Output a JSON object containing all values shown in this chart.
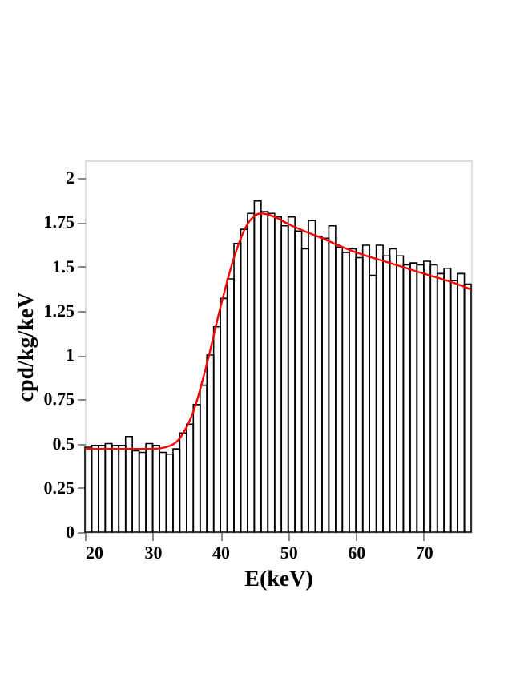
{
  "chart_data": {
    "type": "histogram",
    "xlabel": "E(keV)",
    "ylabel": "cpd/kg/keV",
    "bins": [
      20,
      21,
      22,
      23,
      24,
      25,
      26,
      27,
      28,
      29,
      30,
      31,
      32,
      33,
      34,
      35,
      36,
      37,
      38,
      39,
      40,
      41,
      42,
      43,
      44,
      45,
      46,
      47,
      48,
      49,
      50,
      51,
      52,
      53,
      54,
      55,
      56,
      57,
      58,
      59,
      60,
      61,
      62,
      63,
      64,
      65,
      66,
      67,
      68,
      69,
      70,
      71,
      72,
      73,
      74,
      75,
      76,
      77
    ],
    "values": [
      0.48,
      0.49,
      0.49,
      0.5,
      0.49,
      0.49,
      0.54,
      0.46,
      0.45,
      0.5,
      0.49,
      0.45,
      0.44,
      0.47,
      0.56,
      0.61,
      0.72,
      0.83,
      1.0,
      1.16,
      1.32,
      1.43,
      1.63,
      1.71,
      1.8,
      1.87,
      1.81,
      1.8,
      1.78,
      1.73,
      1.78,
      1.7,
      1.6,
      1.76,
      1.67,
      1.66,
      1.73,
      1.61,
      1.58,
      1.6,
      1.55,
      1.62,
      1.45,
      1.62,
      1.56,
      1.6,
      1.56,
      1.51,
      1.52,
      1.51,
      1.53,
      1.51,
      1.46,
      1.49,
      1.42,
      1.46,
      1.4
    ],
    "color": "#000000",
    "series": [
      {
        "type": "line",
        "color": "#ff0000",
        "x": [
          20,
          25,
          30,
          32,
          34,
          36,
          38,
          40,
          42,
          44,
          46,
          48,
          50,
          55,
          60,
          65,
          70,
          75,
          77
        ],
        "values": [
          0.47,
          0.47,
          0.47,
          0.48,
          0.53,
          0.68,
          0.95,
          1.27,
          1.55,
          1.74,
          1.8,
          1.78,
          1.74,
          1.66,
          1.58,
          1.52,
          1.46,
          1.4,
          1.37
        ]
      }
    ],
    "xlim": [
      20,
      77
    ],
    "xticks": [
      20,
      30,
      40,
      50,
      60,
      70
    ],
    "ylim": [
      0,
      2.1
    ],
    "yticks": [
      0,
      0.25,
      0.5,
      0.75,
      1,
      1.25,
      1.5,
      1.75,
      2
    ],
    "grid": false
  }
}
